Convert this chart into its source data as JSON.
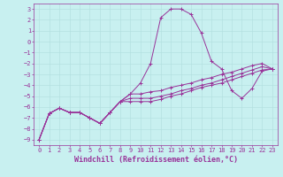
{
  "xlabel": "Windchill (Refroidissement éolien,°C)",
  "xlim": [
    0,
    23
  ],
  "ylim": [
    -9,
    3
  ],
  "xticks": [
    0,
    1,
    2,
    3,
    4,
    5,
    6,
    7,
    8,
    9,
    10,
    11,
    12,
    13,
    14,
    15,
    16,
    17,
    18,
    19,
    20,
    21,
    22,
    23
  ],
  "yticks": [
    3,
    2,
    1,
    0,
    -1,
    -2,
    -3,
    -4,
    -5,
    -6,
    -7,
    -8,
    -9
  ],
  "bg_color": "#c8f0f0",
  "line_color": "#993399",
  "grid_color": "#b0dede",
  "x": [
    0,
    1,
    2,
    3,
    4,
    5,
    6,
    7,
    8,
    9,
    10,
    11,
    12,
    13,
    14,
    15,
    16,
    17,
    18,
    19,
    20,
    21,
    22,
    23
  ],
  "line1": [
    -9.0,
    -6.6,
    -6.1,
    -6.5,
    -6.5,
    -7.0,
    -7.5,
    -6.5,
    -5.5,
    -4.8,
    -3.8,
    -2.0,
    2.2,
    3.0,
    3.0,
    2.5,
    0.8,
    -1.8,
    -2.5,
    -4.5,
    -5.2,
    -4.3,
    -2.7,
    -2.5
  ],
  "line2": [
    -9.0,
    -6.6,
    -6.1,
    -6.5,
    -6.5,
    -7.0,
    -7.5,
    -6.5,
    -5.5,
    -4.8,
    -4.8,
    -4.6,
    -4.5,
    -4.2,
    -4.0,
    -3.8,
    -3.5,
    -3.3,
    -3.0,
    -2.8,
    -2.5,
    -2.2,
    -2.0,
    -2.5
  ],
  "line3": [
    -9.0,
    -6.6,
    -6.1,
    -6.5,
    -6.5,
    -7.0,
    -7.5,
    -6.5,
    -5.5,
    -5.2,
    -5.2,
    -5.2,
    -5.0,
    -4.8,
    -4.5,
    -4.3,
    -4.0,
    -3.8,
    -3.5,
    -3.2,
    -2.9,
    -2.6,
    -2.3,
    -2.5
  ],
  "line4": [
    -9.0,
    -6.6,
    -6.1,
    -6.5,
    -6.5,
    -7.0,
    -7.5,
    -6.5,
    -5.5,
    -5.5,
    -5.5,
    -5.5,
    -5.3,
    -5.0,
    -4.8,
    -4.5,
    -4.2,
    -4.0,
    -3.8,
    -3.5,
    -3.2,
    -2.9,
    -2.6,
    -2.5
  ],
  "tick_fontsize": 5.0,
  "label_fontsize": 6.0
}
